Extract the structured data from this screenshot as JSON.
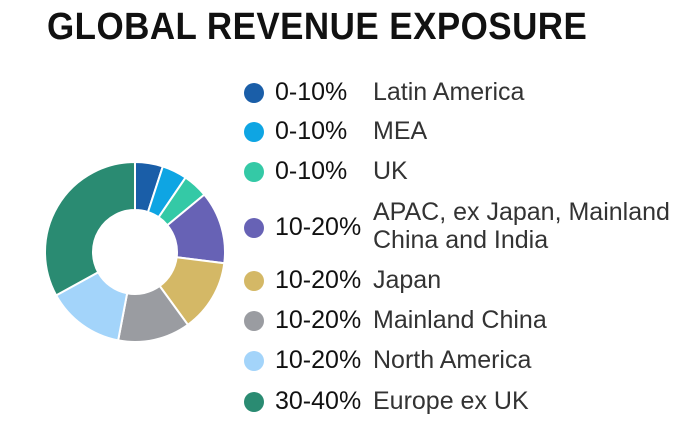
{
  "title": "GLOBAL REVENUE EXPOSURE",
  "chart_data": {
    "type": "pie",
    "title": "GLOBAL REVENUE EXPOSURE",
    "donut": true,
    "slices": [
      {
        "label": "Latin America",
        "range": "0-10%",
        "value": 5,
        "color": "#1a5ea8"
      },
      {
        "label": "MEA",
        "range": "0-10%",
        "value": 4.5,
        "color": "#0ea5e3"
      },
      {
        "label": "UK",
        "range": "0-10%",
        "value": 4.5,
        "color": "#34c9a6"
      },
      {
        "label": "APAC, ex Japan, Mainland China and India",
        "range": "10-20%",
        "value": 13,
        "color": "#6762b5"
      },
      {
        "label": "Japan",
        "range": "10-20%",
        "value": 13,
        "color": "#d4b866"
      },
      {
        "label": "Mainland China",
        "range": "10-20%",
        "value": 13,
        "color": "#9a9ca1"
      },
      {
        "label": "North America",
        "range": "10-20%",
        "value": 14,
        "color": "#a3d4fa"
      },
      {
        "label": "Europe ex UK",
        "range": "30-40%",
        "value": 33,
        "color": "#2a8b72"
      }
    ]
  },
  "legend": [
    {
      "range": "0-10%",
      "region": "Latin America"
    },
    {
      "range": "0-10%",
      "region": "MEA"
    },
    {
      "range": "0-10%",
      "region": "UK"
    },
    {
      "range": "10-20%",
      "region": "APAC, ex Japan, Mainland",
      "region2": "China and India"
    },
    {
      "range": "10-20%",
      "region": "Japan"
    },
    {
      "range": "10-20%",
      "region": "Mainland China"
    },
    {
      "range": "10-20%",
      "region": "North America"
    },
    {
      "range": "30-40%",
      "region": "Europe ex UK"
    }
  ]
}
